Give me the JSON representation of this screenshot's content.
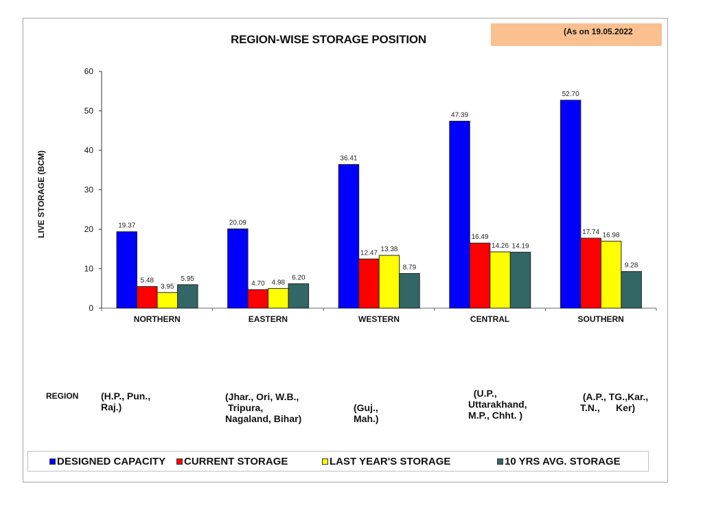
{
  "header": {
    "title": "REGION-WISE STORAGE POSITION",
    "date_note": "(As on 19.05.2022"
  },
  "regions_section": {
    "label": "REGION",
    "descriptions": [
      "(H.P., Pun.,\nRaj.)",
      "(Jhar., Ori, W.B.,\n Tripura,\nNagaland, Bihar)",
      "(Guj.,\nMah.)",
      "  (U.P.,\nUttarakhand,\nM.P., Chht. )",
      " (A.P., TG.,Kar.,\nT.N.,      Ker)"
    ]
  },
  "colors": {
    "designed": "#0000ff",
    "current": "#ff0000",
    "last_year": "#ffff00",
    "avg10": "#336666",
    "date_box": "#fac090"
  },
  "chart_data": {
    "type": "bar",
    "title": "REGION-WISE STORAGE POSITION",
    "xlabel": "",
    "ylabel": "LIVE STORAGE (BCM)",
    "ylim": [
      0,
      60
    ],
    "yticks": [
      "0",
      "10",
      "20",
      "30",
      "40",
      "50",
      "60"
    ],
    "grid": false,
    "legend_position": "bottom",
    "categories": [
      "NORTHERN",
      "EASTERN",
      "WESTERN",
      "CENTRAL",
      "SOUTHERN"
    ],
    "series": [
      {
        "name": "DESIGNED CAPACITY",
        "color": "#0000ff",
        "values": [
          19.37,
          20.09,
          36.41,
          47.39,
          52.7
        ],
        "labels": [
          "19.37",
          "20.09",
          "36.41",
          "47.39",
          "52.70"
        ]
      },
      {
        "name": "CURRENT STORAGE",
        "color": "#ff0000",
        "values": [
          5.48,
          4.7,
          12.47,
          16.49,
          17.74
        ],
        "labels": [
          "5.48",
          "4.70",
          "12.47",
          "16.49",
          "17.74"
        ]
      },
      {
        "name": "LAST YEAR'S STORAGE",
        "color": "#ffff00",
        "values": [
          3.95,
          4.98,
          13.38,
          14.26,
          16.98
        ],
        "labels": [
          "3.95",
          "4.98",
          "13.38",
          "14.26",
          "16.98"
        ]
      },
      {
        "name": "10 YRS AVG. STORAGE",
        "color": "#336666",
        "values": [
          5.95,
          6.2,
          8.79,
          14.19,
          9.28
        ],
        "labels": [
          "5.95",
          "6.20",
          "8.79",
          "14.19",
          "9.28"
        ]
      }
    ]
  }
}
